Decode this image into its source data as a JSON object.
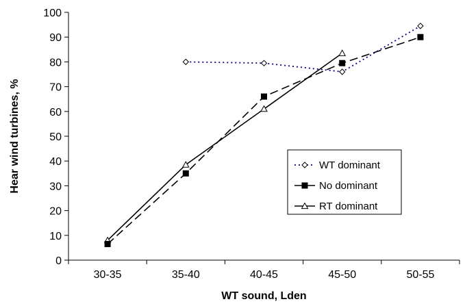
{
  "chart_data": {
    "type": "line",
    "xlabel": "WT sound, Lden",
    "ylabel": "Hear wind turbines, %",
    "categories": [
      "30-35",
      "35-40",
      "40-45",
      "45-50",
      "50-55"
    ],
    "ylim": [
      0,
      100
    ],
    "yticks": [
      0,
      10,
      20,
      30,
      40,
      50,
      60,
      70,
      80,
      90,
      100
    ],
    "grid": false,
    "legend_position": "right",
    "series": [
      {
        "name": "WT dominant",
        "values": [
          null,
          80,
          79.5,
          76,
          94.5
        ],
        "color": "#00008b",
        "line_style": "dotted",
        "marker": "diamond-open"
      },
      {
        "name": "No dominant",
        "values": [
          6.5,
          35,
          66,
          79.5,
          90
        ],
        "color": "#000000",
        "line_style": "dashed",
        "marker": "square-filled"
      },
      {
        "name": "RT dominant",
        "values": [
          8,
          38.5,
          61,
          83.5,
          null
        ],
        "color": "#000000",
        "line_style": "solid",
        "marker": "triangle-open"
      }
    ]
  }
}
